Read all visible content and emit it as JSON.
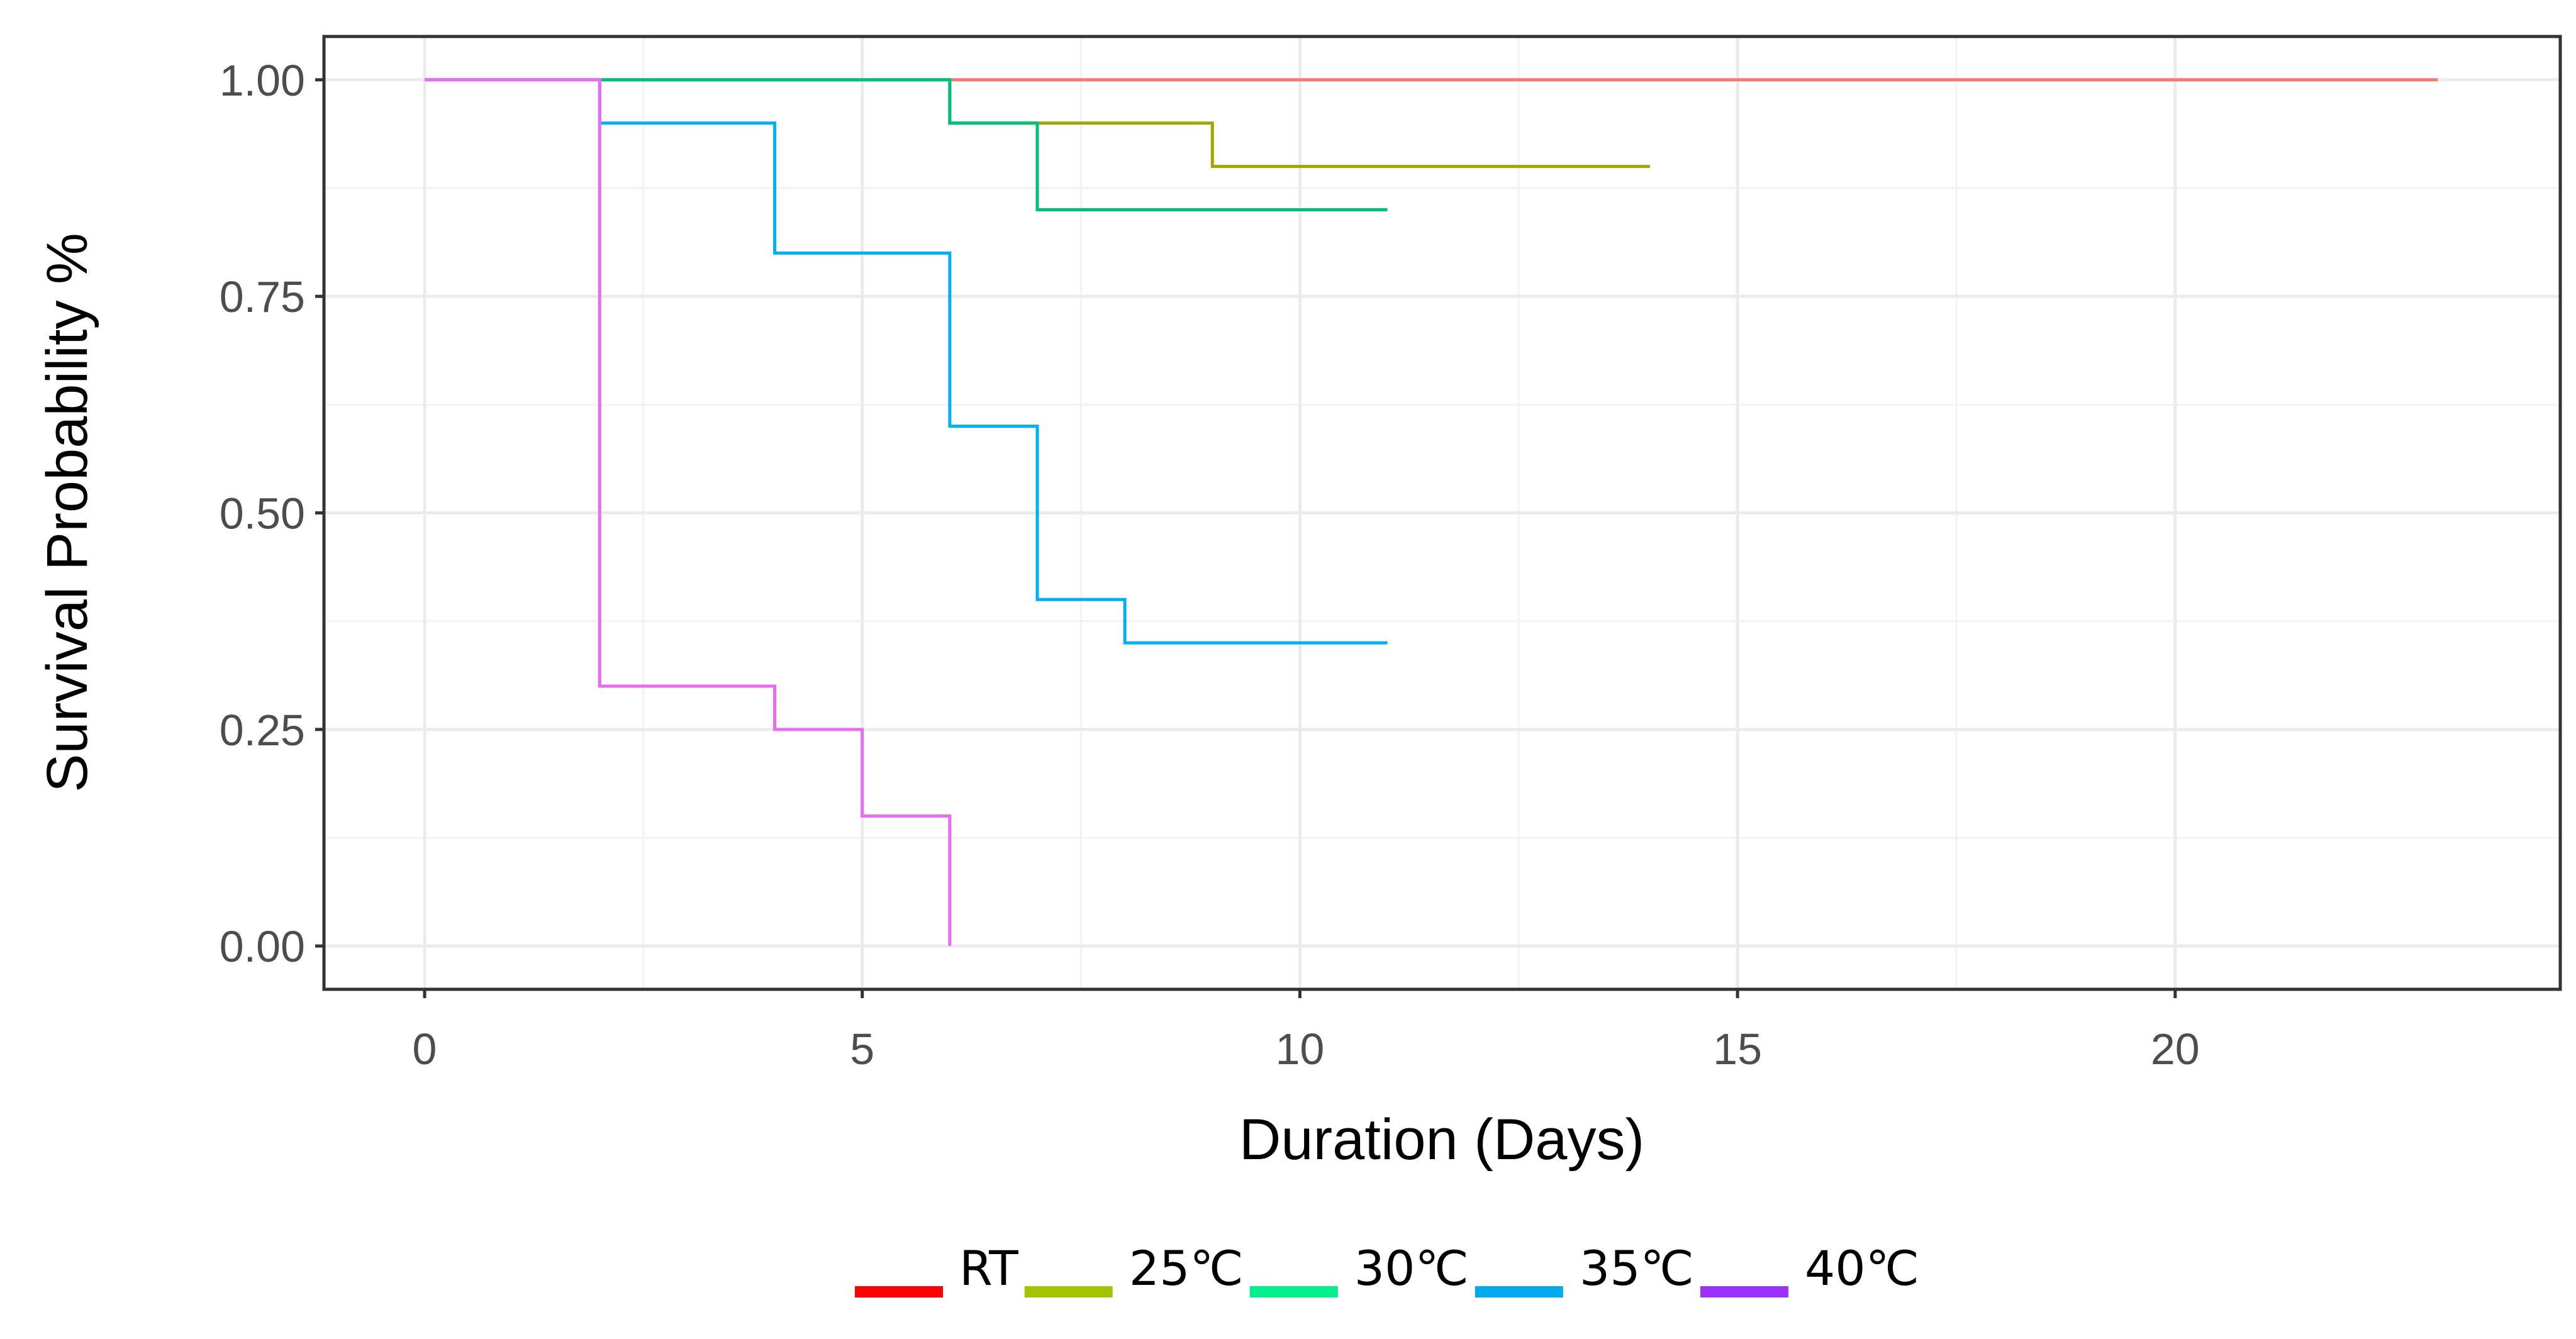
{
  "chart_data": {
    "type": "line",
    "subtype": "step",
    "xlabel": "Duration (Days)",
    "ylabel": "Survival Probability %",
    "xlim": [
      -1.15,
      24.4
    ],
    "ylim": [
      -0.05,
      1.05
    ],
    "xticks": [
      0,
      5,
      10,
      15,
      20
    ],
    "xtick_labels": [
      "0",
      "5",
      "10",
      "15",
      "20"
    ],
    "yticks": [
      0,
      0.25,
      0.5,
      0.75,
      1
    ],
    "ytick_labels": [
      "0.00",
      "0.25",
      "0.50",
      "0.75",
      "1.00"
    ],
    "grid": true,
    "legend_position": "bottom",
    "series": [
      {
        "name": "RT",
        "line_color": "#F8766D",
        "legend_color": "#FF0000",
        "x": [
          0,
          23
        ],
        "y": [
          1.0,
          1.0
        ]
      },
      {
        "name": "25℃",
        "line_color": "#A3A500",
        "legend_color": "#A3C400",
        "x": [
          0,
          6,
          9,
          14
        ],
        "y": [
          1.0,
          0.95,
          0.9,
          0.9
        ]
      },
      {
        "name": "30℃",
        "line_color": "#00BF7D",
        "legend_color": "#00F08C",
        "x": [
          0,
          6,
          7,
          11
        ],
        "y": [
          1.0,
          0.95,
          0.85,
          0.85
        ]
      },
      {
        "name": "35℃",
        "line_color": "#00B0F6",
        "legend_color": "#00AAF0",
        "x": [
          0,
          2,
          4,
          6,
          7,
          8,
          11
        ],
        "y": [
          1.0,
          0.95,
          0.8,
          0.6,
          0.4,
          0.35,
          0.35
        ]
      },
      {
        "name": "40℃",
        "line_color": "#E76BF3",
        "legend_color": "#9B30FF",
        "x": [
          0,
          2,
          4,
          5,
          6
        ],
        "y": [
          1.0,
          0.3,
          0.25,
          0.15,
          0.0
        ]
      }
    ]
  }
}
